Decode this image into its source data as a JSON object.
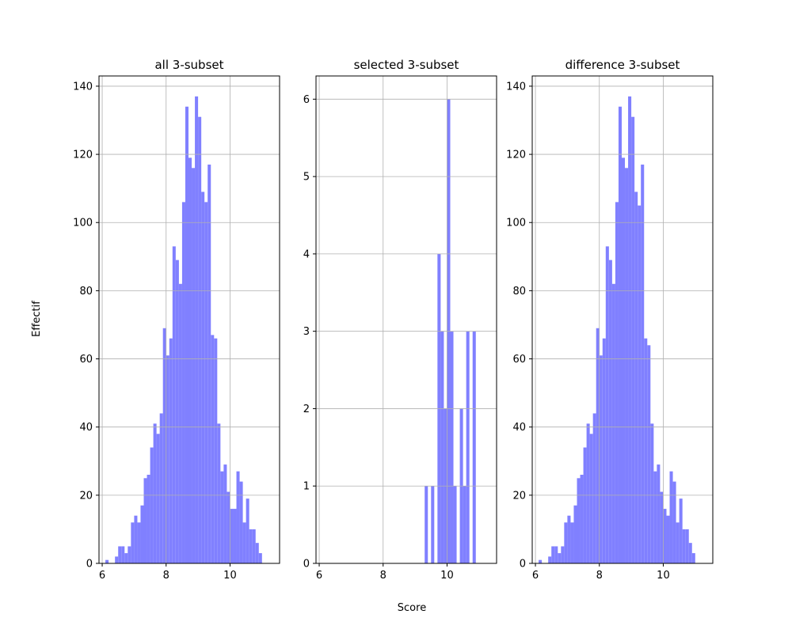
{
  "figure": {
    "xlabel": "Score",
    "ylabel": "Effectif"
  },
  "chart_data": [
    {
      "type": "bar",
      "title": "all 3-subset",
      "xlim": [
        5.9,
        11.55
      ],
      "ylim": [
        0,
        143
      ],
      "xticks": [
        6,
        8,
        10
      ],
      "yticks": [
        0,
        20,
        40,
        60,
        80,
        100,
        120,
        140
      ],
      "grid": true,
      "bar_color": "#8080ff",
      "bin_start": 6.0,
      "bin_width": 0.1,
      "values": [
        0,
        1,
        0,
        0,
        2,
        5,
        5,
        3,
        5,
        12,
        14,
        12,
        17,
        25,
        26,
        34,
        41,
        38,
        44,
        69,
        61,
        66,
        93,
        89,
        82,
        106,
        134,
        119,
        116,
        137,
        131,
        109,
        106,
        117,
        67,
        66,
        41,
        27,
        29,
        21,
        16,
        16,
        27,
        24,
        12,
        19,
        10,
        10,
        6,
        3
      ]
    },
    {
      "type": "bar",
      "title": "selected 3-subset",
      "xlim": [
        5.9,
        11.55
      ],
      "ylim": [
        0,
        6.3
      ],
      "xticks": [
        6,
        8,
        10
      ],
      "yticks": [
        0,
        1,
        2,
        3,
        4,
        5,
        6
      ],
      "grid": true,
      "bar_color": "#8080ff",
      "bin_start": 9.3,
      "bin_width": 0.1,
      "values": [
        1,
        0,
        1,
        0,
        4,
        3,
        2,
        6,
        3,
        1,
        0,
        2,
        1,
        3,
        0,
        3
      ]
    },
    {
      "type": "bar",
      "title": "difference 3-subset",
      "xlim": [
        5.9,
        11.55
      ],
      "ylim": [
        0,
        143
      ],
      "xticks": [
        6,
        8,
        10
      ],
      "yticks": [
        0,
        20,
        40,
        60,
        80,
        100,
        120,
        140
      ],
      "grid": true,
      "bar_color": "#8080ff",
      "bin_start": 6.0,
      "bin_width": 0.1,
      "values": [
        0,
        1,
        0,
        0,
        2,
        5,
        5,
        3,
        5,
        12,
        14,
        12,
        17,
        25,
        26,
        34,
        41,
        38,
        44,
        69,
        61,
        66,
        93,
        89,
        82,
        106,
        134,
        119,
        116,
        137,
        131,
        109,
        105,
        117,
        66,
        64,
        41,
        27,
        29,
        21,
        16,
        14,
        27,
        24,
        12,
        19,
        10,
        10,
        6,
        3
      ]
    }
  ]
}
